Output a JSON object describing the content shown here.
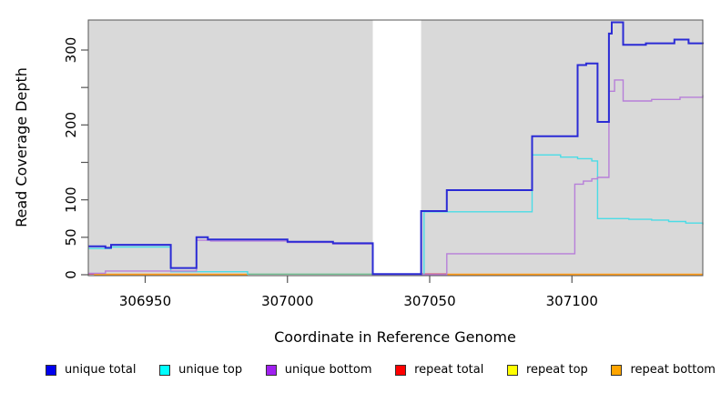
{
  "chart_data": {
    "type": "line",
    "title": "",
    "xlabel": "Coordinate in Reference Genome",
    "ylabel": "Read Coverage Depth",
    "x_range": [
      306930,
      307146
    ],
    "y_range": [
      0,
      340
    ],
    "grid": false,
    "legend_position": "bottom",
    "plot_bg_color": "#d9d9d9",
    "box_color": "#555555",
    "masked_region": {
      "x_start": 307030,
      "x_end": 307047,
      "color": "#ffffff"
    },
    "x_ticks": [
      {
        "value": 306950,
        "label": "306950"
      },
      {
        "value": 307000,
        "label": "307000"
      },
      {
        "value": 307050,
        "label": "307050"
      },
      {
        "value": 307100,
        "label": "307100"
      }
    ],
    "y_ticks": [
      {
        "value": 0,
        "label": "0"
      },
      {
        "value": 50,
        "label": "50"
      },
      {
        "value": 100,
        "label": "100"
      },
      {
        "value": 150,
        "label": ""
      },
      {
        "value": 200,
        "label": "200"
      },
      {
        "value": 250,
        "label": ""
      },
      {
        "value": 300,
        "label": "300"
      }
    ],
    "draw_order": [
      "repeat top",
      "repeat total",
      "repeat bottom",
      "unique top",
      "unique bottom",
      "unique total"
    ],
    "series": [
      {
        "name": "unique total",
        "legend_color": "#0000EE",
        "line_color": "#2B2BD5",
        "line_width": 2,
        "segments": [
          [
            [
              306930,
              38
            ],
            [
              306935,
              38
            ],
            [
              306936,
              36
            ],
            [
              306938,
              40
            ],
            [
              306959,
              9
            ],
            [
              306968,
              50
            ],
            [
              306972,
              47
            ],
            [
              307000,
              44
            ],
            [
              307016,
              42
            ],
            [
              307030,
              1
            ],
            [
              307047,
              85
            ],
            [
              307056,
              113
            ],
            [
              307086,
              185
            ],
            [
              307102,
              280
            ],
            [
              307105,
              282
            ],
            [
              307109,
              204
            ],
            [
              307113,
              322
            ],
            [
              307114,
              337
            ],
            [
              307118,
              307
            ],
            [
              307126,
              309
            ],
            [
              307136,
              314
            ],
            [
              307141,
              309
            ],
            [
              307146,
              308
            ]
          ]
        ]
      },
      {
        "name": "unique top",
        "legend_color": "#00FFFF",
        "line_color": "#4ADCE6",
        "line_width": 1.4,
        "segments": [
          [
            [
              306930,
              35
            ],
            [
              306938,
              37
            ],
            [
              306959,
              4
            ],
            [
              306986,
              0
            ]
          ],
          [
            [
              307047,
              0
            ],
            [
              307048,
              84
            ],
            [
              307086,
              160
            ],
            [
              307096,
              157
            ],
            [
              307102,
              155
            ],
            [
              307107,
              152
            ],
            [
              307109,
              75
            ],
            [
              307120,
              74
            ],
            [
              307128,
              73
            ],
            [
              307134,
              71
            ],
            [
              307140,
              69
            ],
            [
              307146,
              67
            ]
          ]
        ]
      },
      {
        "name": "unique bottom",
        "legend_color": "#A020F0",
        "line_color": "#B77FD9",
        "line_width": 1.4,
        "segments": [
          [
            [
              306930,
              2
            ],
            [
              306936,
              5
            ],
            [
              306968,
              46
            ],
            [
              306973,
              45
            ],
            [
              307000,
              43
            ],
            [
              307016,
              41
            ],
            [
              307030,
              0.5
            ],
            [
              307047,
              0
            ],
            [
              307056,
              28
            ],
            [
              307101,
              121
            ],
            [
              307104,
              125
            ],
            [
              307107,
              128
            ],
            [
              307109,
              130
            ],
            [
              307113,
              245
            ],
            [
              307115,
              260
            ],
            [
              307118,
              232
            ],
            [
              307128,
              234
            ],
            [
              307138,
              237
            ],
            [
              307146,
              240
            ]
          ]
        ]
      },
      {
        "name": "repeat total",
        "legend_color": "#FF0000",
        "line_color": "#D04868",
        "line_width": 1.4,
        "segments": [
          [
            [
              306930,
              1
            ],
            [
              306933,
              1
            ]
          ],
          [
            [
              307047,
              1
            ],
            [
              307056,
              1
            ]
          ]
        ]
      },
      {
        "name": "repeat top",
        "legend_color": "#FFFF00",
        "line_color": "#72BE92",
        "line_width": 1.4,
        "segments": [
          [
            [
              306986,
              0.8
            ],
            [
              307030,
              0.8
            ]
          ]
        ]
      },
      {
        "name": "repeat bottom",
        "legend_color": "#FFA500",
        "line_color": "#FF9D1E",
        "line_width": 1.8,
        "segments": [
          [
            [
              306932,
              0.4
            ],
            [
              306986,
              0.4
            ]
          ],
          [
            [
              307056,
              0.4
            ],
            [
              307146,
              0.4
            ]
          ]
        ]
      }
    ]
  }
}
